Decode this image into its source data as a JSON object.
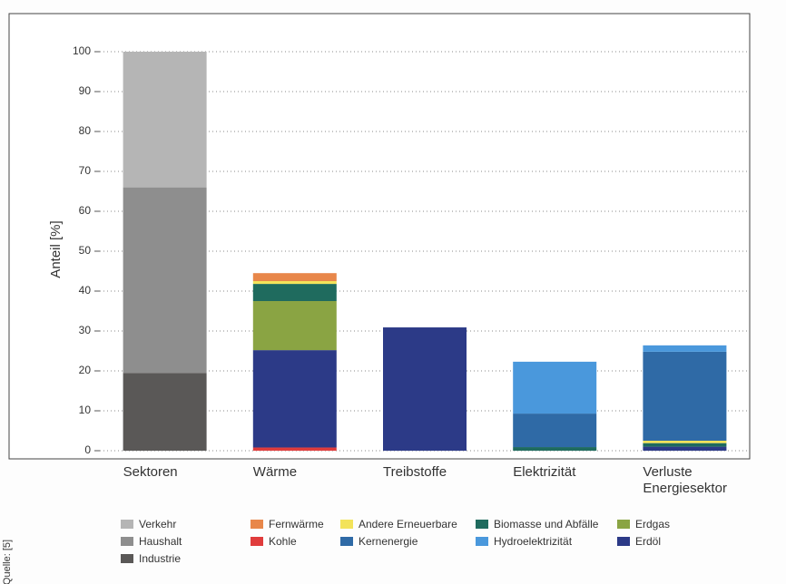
{
  "chart_data": {
    "type": "stacked-bar",
    "y_label": "Anteil [%]",
    "source": "Quelle: [5]",
    "categories": [
      "Sektoren",
      "Wärme",
      "Treibstoffe",
      "Elektrizität",
      "Verluste Energiesektor"
    ],
    "ylim": [
      0,
      100
    ],
    "yticks": [
      0,
      10,
      20,
      30,
      40,
      50,
      60,
      70,
      80,
      90,
      100
    ],
    "grid": true,
    "series": [
      {
        "name": "Industrie",
        "color": "#5a5857",
        "values": [
          19.5,
          null,
          null,
          null,
          null
        ]
      },
      {
        "name": "Haushalt",
        "color": "#8e8e8e",
        "values": [
          46.5,
          null,
          null,
          null,
          null
        ]
      },
      {
        "name": "Verkehr",
        "color": "#b5b5b5",
        "values": [
          34,
          null,
          null,
          null,
          null
        ]
      },
      {
        "name": "Kohle",
        "color": "#e03c3c",
        "values": [
          null,
          0.8,
          null,
          null,
          null
        ]
      },
      {
        "name": "Erdöl",
        "color": "#2c3a87",
        "values": [
          null,
          24.4,
          30.9,
          null,
          1.0
        ]
      },
      {
        "name": "Erdgas",
        "color": "#8aa443",
        "values": [
          null,
          12.3,
          null,
          null,
          null
        ]
      },
      {
        "name": "Biomasse und Abfälle",
        "color": "#1f6b5e",
        "values": [
          null,
          4.3,
          null,
          0.9,
          0.9
        ]
      },
      {
        "name": "Andere Erneuerbare",
        "color": "#f3e35a",
        "values": [
          null,
          0.7,
          null,
          null,
          0.6
        ]
      },
      {
        "name": "Fernwärme",
        "color": "#e8874a",
        "values": [
          null,
          2.0,
          null,
          null,
          null
        ]
      },
      {
        "name": "Kernenergie",
        "color": "#2f6aa6",
        "values": [
          null,
          null,
          null,
          8.4,
          22.3
        ]
      },
      {
        "name": "Hydroelektrizität",
        "color": "#4a98dc",
        "values": [
          null,
          null,
          null,
          13.0,
          1.6
        ]
      }
    ]
  }
}
